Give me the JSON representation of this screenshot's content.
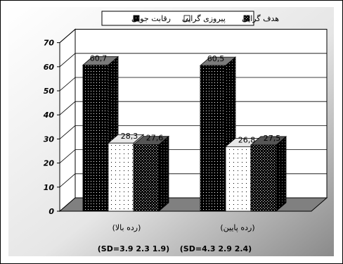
{
  "chart_data": {
    "type": "bar",
    "categories": [
      "(رده بالا)",
      "(رده پایین)"
    ],
    "sd_labels": [
      "(SD=3.9    2.3    1.9)",
      "(SD=4.3    2.9    2.4)"
    ],
    "series": [
      {
        "name": "هدف گرایی",
        "values": [
          60.7,
          60.5
        ],
        "color": "#000000"
      },
      {
        "name": "پیروزی گرایی",
        "values": [
          28.3,
          26.8
        ],
        "color": "#ffffff"
      },
      {
        "name": "رقابت جویی",
        "values": [
          27.6,
          27.5
        ],
        "color": "#000000"
      }
    ],
    "value_labels": [
      [
        "60,7",
        "28,3",
        "27,6"
      ],
      [
        "60,5",
        "26,8",
        "27,5"
      ]
    ],
    "ylim": [
      0,
      70
    ],
    "yticks": [
      0,
      10,
      20,
      30,
      40,
      50,
      60,
      70
    ],
    "legend_position": "top",
    "grid": true
  }
}
